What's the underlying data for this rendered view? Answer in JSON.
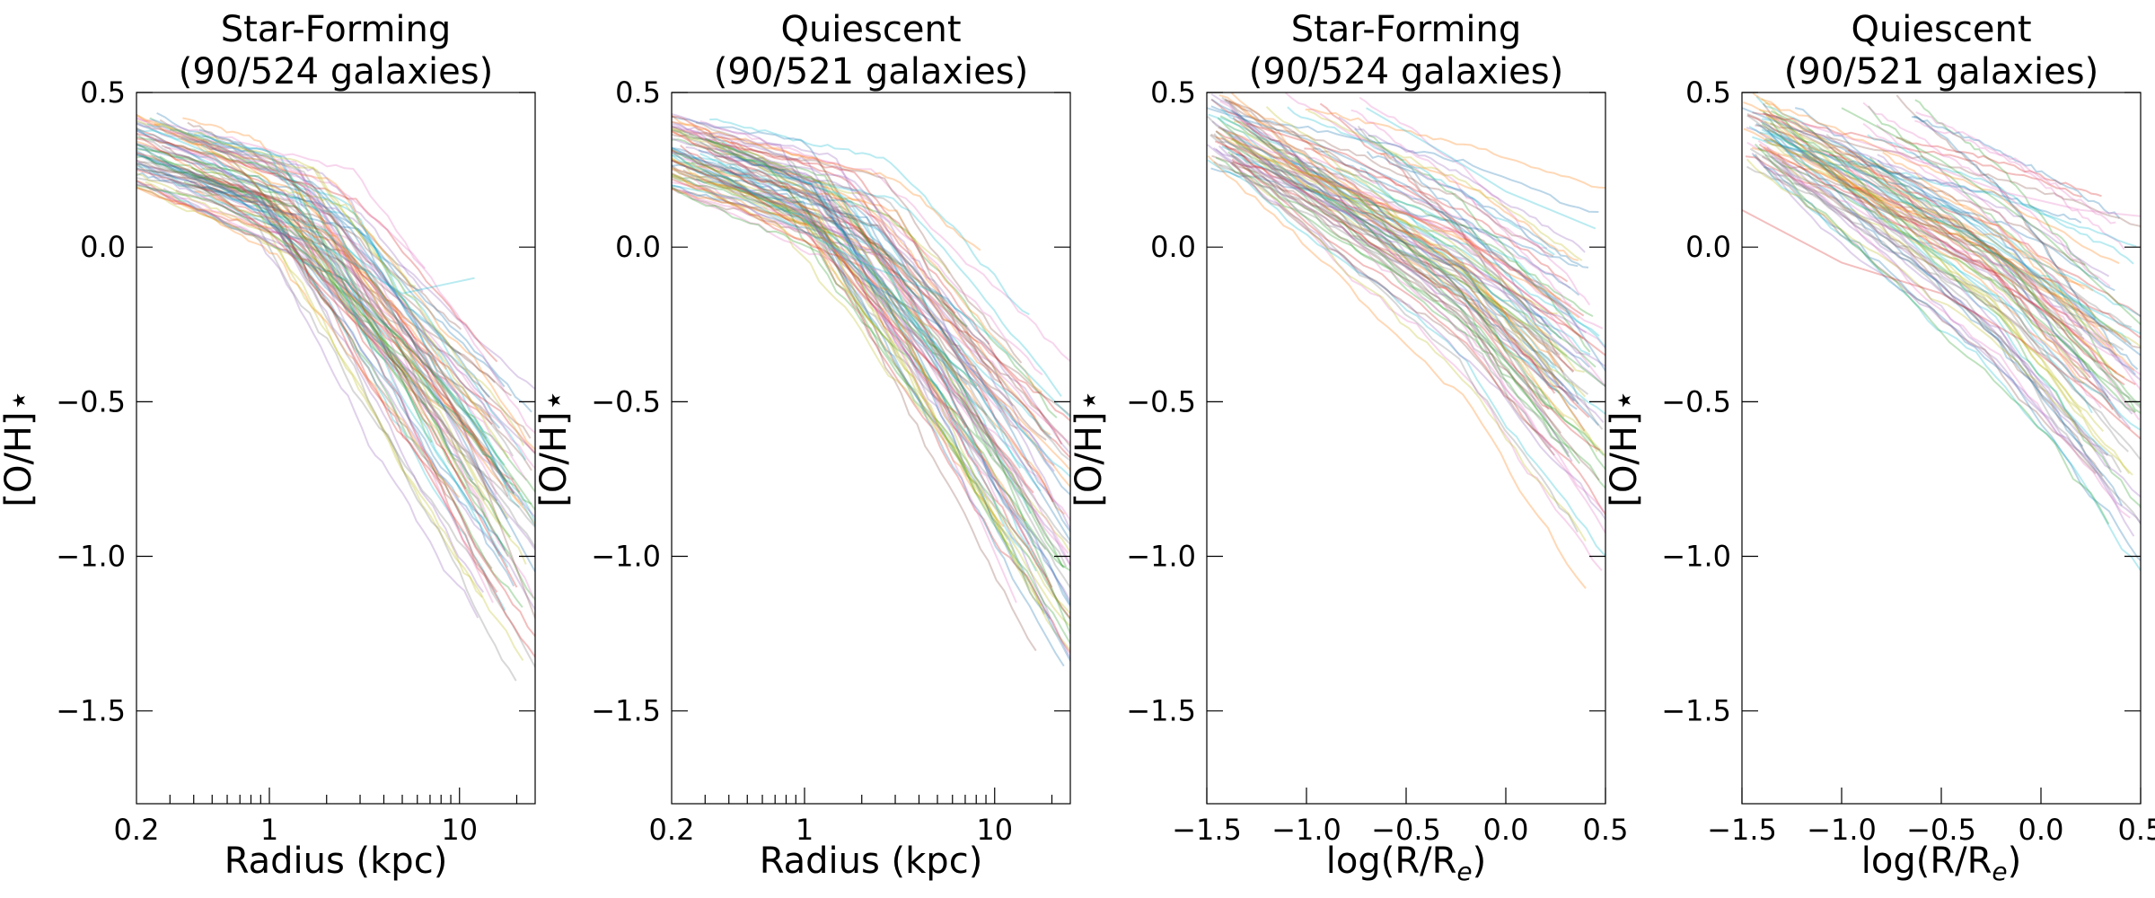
{
  "chart_data": [
    {
      "type": "line",
      "title_line1": "Star-Forming",
      "title_line2": "(90/524 galaxies)",
      "xlabel": "Radius (kpc)",
      "ylabel": "[O/H]⋆",
      "xscale": "log",
      "xlim": [
        0.2,
        25
      ],
      "ylim": [
        -1.8,
        0.5
      ],
      "xticks": [
        {
          "v": 0.2,
          "label": "0.2"
        },
        {
          "v": 1,
          "label": "1"
        },
        {
          "v": 10,
          "label": "10"
        }
      ],
      "yticks": [
        {
          "v": 0.5,
          "label": "0.5"
        },
        {
          "v": 0.0,
          "label": "0.0"
        },
        {
          "v": -0.5,
          "label": "−0.5"
        },
        {
          "v": -1.0,
          "label": "−1.0"
        },
        {
          "v": -1.5,
          "label": "−1.5"
        }
      ],
      "n_curves_shown": 90,
      "representative_profiles": [
        {
          "x": [
            0.2,
            0.5,
            1,
            2,
            5,
            10,
            25
          ],
          "y": [
            0.3,
            0.22,
            0.08,
            -0.08,
            -0.3,
            -0.6,
            -1.05
          ]
        },
        {
          "x": [
            0.2,
            0.5,
            1,
            2,
            5,
            10,
            20
          ],
          "y": [
            0.25,
            0.18,
            0.05,
            -0.15,
            -0.4,
            -0.75,
            -1.1
          ]
        },
        {
          "x": [
            0.25,
            0.5,
            1,
            2,
            4,
            8,
            15
          ],
          "y": [
            0.35,
            0.28,
            0.12,
            -0.05,
            -0.35,
            -0.8,
            -1.15
          ]
        },
        {
          "x": [
            0.2,
            0.5,
            1,
            2,
            5,
            12
          ],
          "y": [
            0.4,
            0.3,
            0.12,
            0.0,
            -0.15,
            -0.1
          ]
        },
        {
          "x": [
            0.2,
            0.5,
            1,
            2,
            5,
            10,
            25
          ],
          "y": [
            0.2,
            0.15,
            0.05,
            -0.1,
            -0.3,
            -0.5,
            -0.85
          ]
        },
        {
          "x": [
            0.3,
            0.6,
            1,
            2,
            5,
            10,
            25
          ],
          "y": [
            0.38,
            0.3,
            0.15,
            0.0,
            -0.25,
            -0.55,
            -1.2
          ]
        }
      ]
    },
    {
      "type": "line",
      "title_line1": "Quiescent",
      "title_line2": "(90/521 galaxies)",
      "xlabel": "Radius (kpc)",
      "ylabel": "[O/H]⋆",
      "xscale": "log",
      "xlim": [
        0.2,
        25
      ],
      "ylim": [
        -1.8,
        0.5
      ],
      "xticks": [
        {
          "v": 0.2,
          "label": "0.2"
        },
        {
          "v": 1,
          "label": "1"
        },
        {
          "v": 10,
          "label": "10"
        }
      ],
      "yticks": [
        {
          "v": 0.5,
          "label": "0.5"
        },
        {
          "v": 0.0,
          "label": "0.0"
        },
        {
          "v": -0.5,
          "label": "−0.5"
        },
        {
          "v": -1.0,
          "label": "−1.0"
        },
        {
          "v": -1.5,
          "label": "−1.5"
        }
      ],
      "n_curves_shown": 90,
      "representative_profiles": [
        {
          "x": [
            0.2,
            0.5,
            1,
            2,
            5,
            10,
            25
          ],
          "y": [
            0.32,
            0.22,
            0.1,
            -0.1,
            -0.25,
            -0.55,
            -0.95
          ]
        },
        {
          "x": [
            0.2,
            0.5,
            1,
            2,
            5,
            10,
            20
          ],
          "y": [
            0.28,
            0.18,
            0.05,
            -0.15,
            -0.4,
            -0.75,
            -1.1
          ]
        },
        {
          "x": [
            0.25,
            0.5,
            1,
            2,
            4,
            8,
            13
          ],
          "y": [
            0.38,
            0.25,
            0.1,
            -0.1,
            -0.45,
            -0.85,
            -1.15
          ]
        },
        {
          "x": [
            0.2,
            0.5,
            1,
            2,
            5,
            10,
            25
          ],
          "y": [
            0.2,
            0.15,
            0.05,
            -0.05,
            -0.15,
            -0.3,
            -0.55
          ]
        },
        {
          "x": [
            0.3,
            0.6,
            1,
            2,
            5,
            10,
            25
          ],
          "y": [
            0.35,
            0.28,
            0.12,
            -0.05,
            -0.3,
            -0.65,
            -1.25
          ]
        }
      ]
    },
    {
      "type": "line",
      "title_line1": "Star-Forming",
      "title_line2": "(90/524 galaxies)",
      "xlabel": "log(R/R",
      "xlabel_sub": "e",
      "xlabel_end": ")",
      "ylabel": "[O/H]⋆",
      "xscale": "linear",
      "xlim": [
        -1.5,
        0.5
      ],
      "ylim": [
        -1.8,
        0.5
      ],
      "xticks": [
        {
          "v": -1.5,
          "label": "−1.5"
        },
        {
          "v": -1.0,
          "label": "−1.0"
        },
        {
          "v": -0.5,
          "label": "−0.5"
        },
        {
          "v": 0.0,
          "label": "0.0"
        },
        {
          "v": 0.5,
          "label": "0.5"
        }
      ],
      "yticks": [
        {
          "v": 0.5,
          "label": "0.5"
        },
        {
          "v": 0.0,
          "label": "0.0"
        },
        {
          "v": -0.5,
          "label": "−0.5"
        },
        {
          "v": -1.0,
          "label": "−1.0"
        },
        {
          "v": -1.5,
          "label": "−1.5"
        }
      ],
      "n_curves_shown": 90,
      "representative_profiles": [
        {
          "x": [
            -1.5,
            -1.0,
            -0.5,
            0.0,
            0.3,
            0.5
          ],
          "y": [
            0.45,
            0.35,
            0.2,
            -0.05,
            -0.2,
            -0.4
          ]
        },
        {
          "x": [
            -1.3,
            -0.8,
            -0.4,
            0.0,
            0.5
          ],
          "y": [
            0.4,
            0.3,
            0.15,
            -0.1,
            -0.35
          ]
        },
        {
          "x": [
            -1.1,
            -0.6,
            -0.2,
            0.2,
            0.5
          ],
          "y": [
            0.25,
            0.15,
            0.0,
            -0.2,
            -0.45
          ]
        },
        {
          "x": [
            -0.7,
            -0.3,
            0.0,
            0.3,
            0.45
          ],
          "y": [
            0.45,
            0.3,
            0.18,
            0.1,
            0.06
          ]
        },
        {
          "x": [
            -1.0,
            -0.5,
            0.0,
            0.5
          ],
          "y": [
            0.2,
            0.0,
            -0.2,
            -0.45
          ]
        }
      ]
    },
    {
      "type": "line",
      "title_line1": "Quiescent",
      "title_line2": "(90/521 galaxies)",
      "xlabel": "log(R/R",
      "xlabel_sub": "e",
      "xlabel_end": ")",
      "ylabel": "[O/H]⋆",
      "xscale": "linear",
      "xlim": [
        -1.5,
        0.5
      ],
      "ylim": [
        -1.8,
        0.5
      ],
      "xticks": [
        {
          "v": -1.5,
          "label": "−1.5"
        },
        {
          "v": -1.0,
          "label": "−1.0"
        },
        {
          "v": -0.5,
          "label": "−0.5"
        },
        {
          "v": 0.0,
          "label": "0.0"
        },
        {
          "v": 0.5,
          "label": "0.5"
        }
      ],
      "yticks": [
        {
          "v": 0.5,
          "label": "0.5"
        },
        {
          "v": 0.0,
          "label": "0.0"
        },
        {
          "v": -0.5,
          "label": "−0.5"
        },
        {
          "v": -1.0,
          "label": "−1.0"
        },
        {
          "v": -1.5,
          "label": "−1.5"
        }
      ],
      "n_curves_shown": 90,
      "representative_profiles": [
        {
          "x": [
            -1.5,
            -1.0,
            -0.5,
            0.0,
            0.5
          ],
          "y": [
            0.45,
            0.32,
            0.15,
            -0.1,
            -0.35
          ]
        },
        {
          "x": [
            -1.5,
            -1.0,
            -0.5,
            -0.1,
            0.2,
            0.5
          ],
          "y": [
            0.12,
            -0.05,
            -0.15,
            -0.3,
            -0.45,
            -0.62
          ]
        },
        {
          "x": [
            -1.2,
            -0.7,
            -0.2,
            0.2,
            0.5
          ],
          "y": [
            0.4,
            0.3,
            0.18,
            0.12,
            0.1
          ]
        },
        {
          "x": [
            -1.4,
            -0.9,
            -0.4,
            0.0,
            0.5
          ],
          "y": [
            0.38,
            0.22,
            0.05,
            -0.12,
            -0.28
          ]
        },
        {
          "x": [
            -1.0,
            -0.5,
            0.0,
            0.5
          ],
          "y": [
            0.45,
            0.28,
            0.05,
            -0.25
          ]
        }
      ]
    }
  ],
  "palette": [
    "#1f77b4",
    "#ff7f0e",
    "#2ca02c",
    "#d62728",
    "#9467bd",
    "#8c564b",
    "#e377c2",
    "#7f7f7f",
    "#bcbd22",
    "#17becf"
  ]
}
